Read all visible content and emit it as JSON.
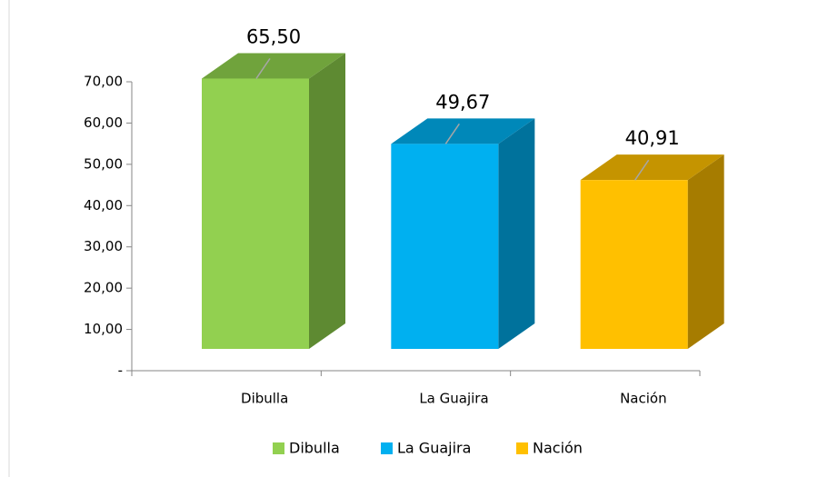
{
  "chart_data": {
    "type": "bar3d",
    "categories": [
      "Dibulla",
      "La Guajira",
      "Nación"
    ],
    "values": [
      65.5,
      49.67,
      40.91
    ],
    "value_labels": [
      "65,50",
      "49,67",
      "40,91"
    ],
    "colors": [
      "#92d050",
      "#00b0f0",
      "#ffc000"
    ],
    "side_colors": [
      "#5e8a32",
      "#00729c",
      "#a67c00"
    ],
    "top_colors": [
      "#70a33c",
      "#0088b9",
      "#c59400"
    ],
    "ylim": [
      0,
      70
    ],
    "yticks": [
      {
        "value": 0,
        "label": "-"
      },
      {
        "value": 10,
        "label": "10,00"
      },
      {
        "value": 20,
        "label": "20,00"
      },
      {
        "value": 30,
        "label": "30,00"
      },
      {
        "value": 40,
        "label": "40,00"
      },
      {
        "value": 50,
        "label": "50,00"
      },
      {
        "value": 60,
        "label": "60,00"
      },
      {
        "value": 70,
        "label": "70,00"
      }
    ],
    "legend": "bottom"
  }
}
